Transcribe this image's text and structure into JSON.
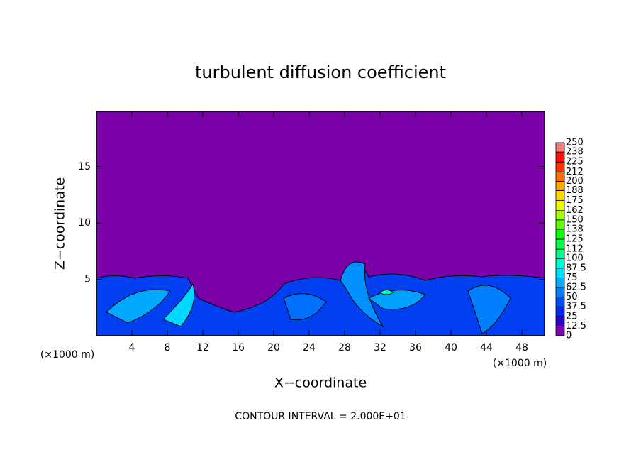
{
  "chart_data": {
    "type": "contour",
    "title": "turbulent diffusion coefficient",
    "xlabel": "X−coordinate",
    "ylabel": "Z−coordinate",
    "x_unit": "(×1000 m)",
    "annotation": "CONTOUR INTERVAL = 2.000E+01",
    "xlim": [
      0,
      50.56
    ],
    "ylim": [
      0,
      19.9
    ],
    "xticks": [
      4,
      8,
      12,
      16,
      20,
      24,
      28,
      32,
      36,
      40,
      44,
      48
    ],
    "yticks": [
      5,
      10,
      15
    ],
    "colorbar": {
      "levels": [
        0,
        12.5,
        25,
        37.5,
        50,
        62.5,
        75,
        87.5,
        100,
        112,
        125,
        138,
        150,
        162,
        175,
        188,
        200,
        212,
        225,
        238,
        250
      ],
      "colors": [
        "#7a00a8",
        "#2a00c8",
        "#0028ee",
        "#0050ff",
        "#0080ff",
        "#00b0ff",
        "#00e0ff",
        "#00ffd0",
        "#00ff90",
        "#00ff50",
        "#10ff10",
        "#60ff00",
        "#a8ff00",
        "#e8ff00",
        "#ffd800",
        "#ffa800",
        "#ff7000",
        "#ff3000",
        "#ff1010",
        "#f08080"
      ]
    }
  }
}
